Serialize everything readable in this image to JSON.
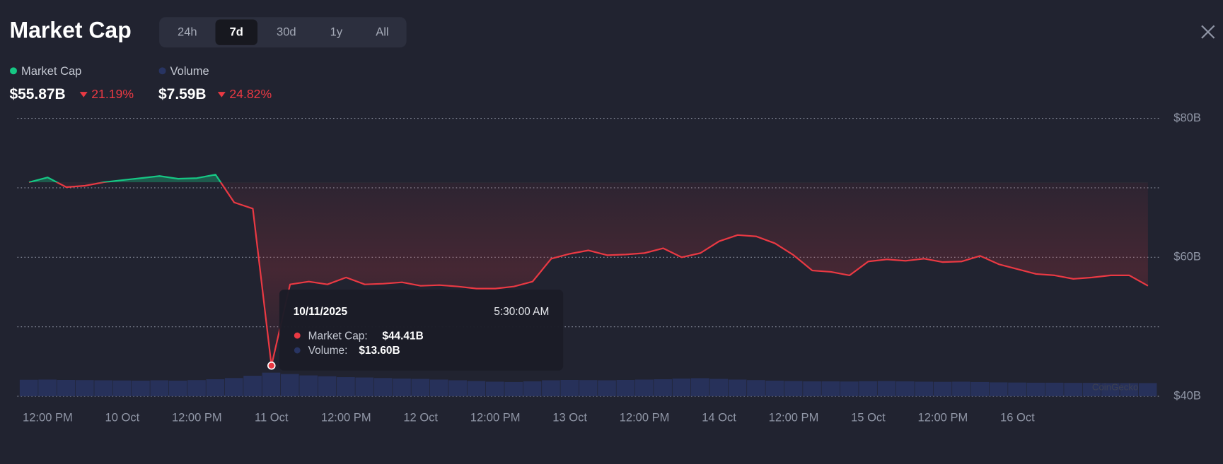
{
  "header": {
    "title": "Market Cap",
    "tabs": [
      "24h",
      "7d",
      "30d",
      "1y",
      "All"
    ],
    "active_tab": 1
  },
  "legend": [
    {
      "value": "$55.87B",
      "change": "21.19%"
    },
    {
      "value": "$7.59B",
      "change": "24.82%"
    }
  ],
  "tooltip": {
    "date": "10/11/2025",
    "time": "5:30:00 AM",
    "point": 13,
    "items": [
      {
        "label": "Market Cap:",
        "value": "$44.41B"
      },
      {
        "label": "Volume:",
        "value": "$13.60B"
      }
    ]
  },
  "chart_data": {
    "type": "line",
    "watermark": "CoinGecko",
    "xlim": [
      0,
      60
    ],
    "xticks": [
      {
        "value": 1,
        "label": "12:00 PM"
      },
      {
        "value": 5,
        "label": "10 Oct"
      },
      {
        "value": 9,
        "label": "12:00 PM"
      },
      {
        "value": 13,
        "label": "11 Oct"
      },
      {
        "value": 17,
        "label": "12:00 PM"
      },
      {
        "value": 21,
        "label": "12 Oct"
      },
      {
        "value": 25,
        "label": "12:00 PM"
      },
      {
        "value": 29,
        "label": "13 Oct"
      },
      {
        "value": 33,
        "label": "12:00 PM"
      },
      {
        "value": 37,
        "label": "14 Oct"
      },
      {
        "value": 41,
        "label": "12:00 PM"
      },
      {
        "value": 45,
        "label": "15 Oct"
      },
      {
        "value": 49,
        "label": "12:00 PM"
      },
      {
        "value": 53,
        "label": "16 Oct"
      }
    ],
    "ylim": [
      40,
      80
    ],
    "yticks": [
      {
        "value": 40,
        "label": "$40B"
      },
      {
        "value": 60,
        "label": "$60B"
      },
      {
        "value": 80,
        "label": "$80B"
      }
    ],
    "ygrid": [
      40,
      50,
      60,
      70,
      80
    ],
    "y2lim": [
      0,
      160
    ],
    "series": [
      {
        "name": "Market Cap",
        "color": "#ea3943",
        "up_color": "#16c784",
        "values": [
          70.8,
          71.5,
          70.1,
          70.3,
          70.8,
          71.1,
          71.4,
          71.7,
          71.3,
          71.4,
          71.9,
          67.9,
          67.0,
          44.41,
          56.1,
          56.5,
          56.1,
          57.1,
          56.1,
          56.2,
          56.4,
          55.9,
          56.0,
          55.8,
          55.5,
          55.5,
          55.8,
          56.5,
          59.8,
          60.5,
          61.0,
          60.3,
          60.4,
          60.6,
          61.3,
          60.0,
          60.6,
          62.3,
          63.2,
          63.0,
          62.0,
          60.3,
          58.1,
          57.9,
          57.4,
          59.4,
          59.7,
          59.5,
          59.8,
          59.3,
          59.4,
          60.2,
          59.0,
          58.3,
          57.6,
          57.4,
          56.9,
          57.1,
          57.4,
          57.4,
          55.9
        ]
      },
      {
        "name": "Volume",
        "color": "#283462",
        "axis": "y2",
        "values": [
          9.5,
          9.6,
          9.4,
          9.3,
          9.2,
          9.1,
          9.0,
          9.2,
          9.0,
          9.3,
          9.8,
          10.5,
          11.8,
          13.6,
          12.8,
          12.0,
          11.5,
          11.0,
          10.8,
          10.5,
          10.2,
          10.0,
          9.6,
          9.2,
          8.8,
          8.4,
          8.2,
          8.6,
          9.2,
          9.4,
          9.3,
          9.2,
          9.4,
          9.6,
          9.8,
          10.2,
          10.4,
          10.0,
          9.6,
          9.3,
          9.0,
          8.8,
          8.6,
          8.6,
          8.5,
          8.7,
          8.8,
          8.6,
          8.4,
          8.3,
          8.4,
          8.2,
          8.0,
          7.9,
          7.8,
          7.8,
          7.7,
          7.7,
          7.6,
          7.6,
          7.6
        ]
      }
    ]
  }
}
